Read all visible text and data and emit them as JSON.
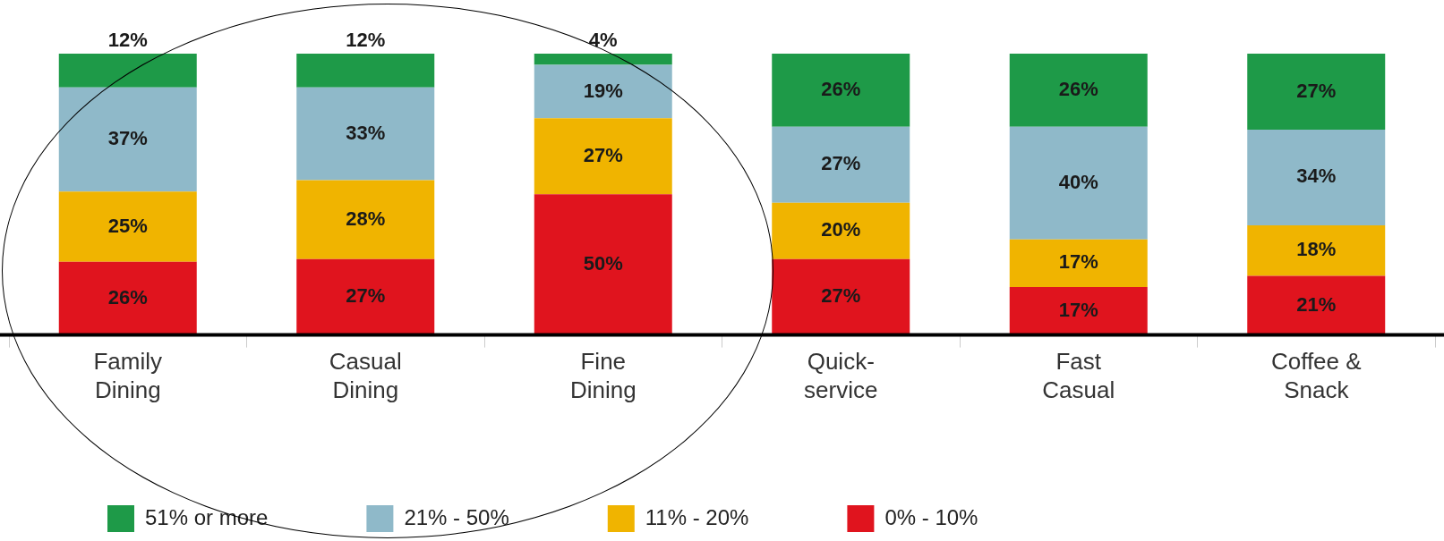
{
  "chart_data": {
    "type": "bar",
    "stacked": true,
    "data_labels": false,
    "legend": "bottom",
    "grid": false,
    "categories": [
      "Family Dining",
      "Casual Dining",
      "Fine Dining",
      "Quick-service",
      "Fast Casual",
      "Coffee & Snack"
    ],
    "series": [
      {
        "name": "0% - 10%",
        "color": "#e0141e",
        "values": [
          26,
          27,
          50,
          27,
          17,
          21
        ],
        "value_labels": [
          "26%",
          "27%",
          "50%",
          "27%",
          "17%",
          "21%"
        ]
      },
      {
        "name": "11% - 20%",
        "color": "#f0b400",
        "values": [
          25,
          28,
          27,
          20,
          17,
          18
        ],
        "value_labels": [
          "25%",
          "28%",
          "27%",
          "20%",
          "17%",
          "18%"
        ]
      },
      {
        "name": "21% - 50%",
        "color": "#8fb9c9",
        "values": [
          37,
          33,
          19,
          27,
          40,
          34
        ],
        "value_labels": [
          "37%",
          "33%",
          "19%",
          "27%",
          "40%",
          "34%"
        ]
      },
      {
        "name": "51% or more",
        "color": "#1e9a48",
        "values": [
          12,
          12,
          4,
          26,
          26,
          27
        ],
        "value_labels": [
          "12%",
          "12%",
          "4%",
          "26%",
          "26%",
          "27%"
        ]
      }
    ]
  }
}
